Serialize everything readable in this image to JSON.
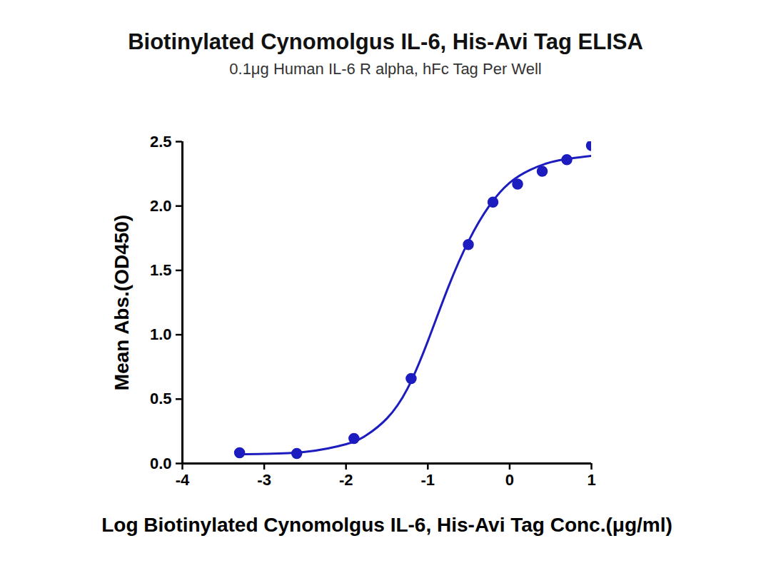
{
  "chart_data": {
    "type": "scatter",
    "title": "Biotinylated Cynomolgus IL-6, His-Avi Tag ELISA",
    "subtitle": "0.1μg Human IL-6 R alpha, hFc Tag Per Well",
    "x_label": "Log Biotinylated Cynomolgus IL-6, His-Avi Tag Conc.(μg/ml)",
    "y_label": "Mean Abs.(OD450)",
    "series": [
      {
        "type": "scatter",
        "marker": "circle",
        "color": "#1c1cbf",
        "x": [
          -3.301,
          -2.602,
          -1.903,
          -1.204,
          -0.505,
          -0.204,
          0.097,
          0.398,
          0.699,
          1.0
        ],
        "values": [
          0.083,
          0.078,
          0.194,
          0.66,
          1.7,
          2.03,
          2.17,
          2.27,
          2.36,
          2.47
        ]
      },
      {
        "type": "line",
        "line_style": "solid",
        "color": "#1c1cbf",
        "x": [
          -3.3,
          -3.0,
          -2.5,
          -2.0,
          -1.75,
          -1.5,
          -1.25,
          -1.0,
          -0.75,
          -0.5,
          -0.25,
          0.0,
          0.25,
          0.5,
          0.75,
          1.0
        ],
        "values": [
          0.07,
          0.075,
          0.09,
          0.15,
          0.22,
          0.35,
          0.58,
          0.95,
          1.37,
          1.73,
          2.0,
          2.18,
          2.28,
          2.34,
          2.37,
          2.39
        ]
      }
    ],
    "xlim": [
      -4,
      1
    ],
    "xticks": [
      -4,
      -3,
      -2,
      -1,
      0,
      1
    ],
    "ylim": [
      0,
      2.5
    ],
    "yticks": [
      {
        "value": 0,
        "label": "0.0"
      },
      0.5,
      {
        "value": 1,
        "label": "1.0"
      },
      1.5,
      {
        "value": 2,
        "label": "2.0"
      },
      2.5
    ],
    "grid": false
  }
}
